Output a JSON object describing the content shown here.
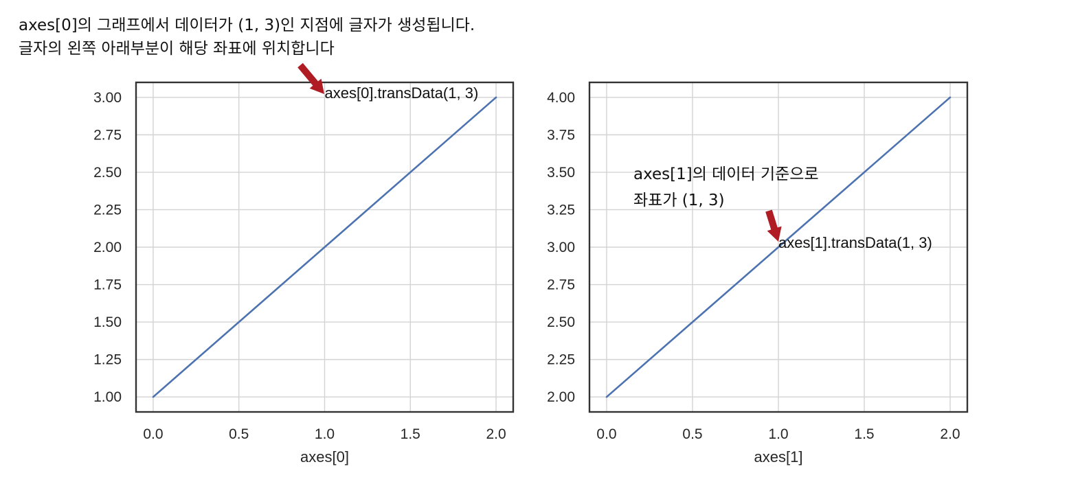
{
  "chart_data": [
    {
      "type": "line",
      "xlabel": "axes[0]",
      "ylabel": "",
      "x": [
        0.0,
        2.0
      ],
      "series": [
        {
          "values": [
            1.0,
            3.0
          ]
        }
      ],
      "xlim": [
        -0.1,
        2.1
      ],
      "ylim": [
        0.9,
        3.1
      ],
      "xticks": [
        "0.0",
        "0.5",
        "1.0",
        "1.5",
        "2.0"
      ],
      "yticks": [
        "1.00",
        "1.25",
        "1.50",
        "1.75",
        "2.00",
        "2.25",
        "2.50",
        "2.75",
        "3.00"
      ],
      "grid": true,
      "line_color": "#4c72b0",
      "annotation": {
        "text": "axes[0].transData(1, 3)",
        "x": 1,
        "y": 3
      }
    },
    {
      "type": "line",
      "xlabel": "axes[1]",
      "ylabel": "",
      "x": [
        0.0,
        2.0
      ],
      "series": [
        {
          "values": [
            2.0,
            4.0
          ]
        }
      ],
      "xlim": [
        -0.1,
        2.1
      ],
      "ylim": [
        1.9,
        4.1
      ],
      "xticks": [
        "0.0",
        "0.5",
        "1.0",
        "1.5",
        "2.0"
      ],
      "yticks": [
        "2.00",
        "2.25",
        "2.50",
        "2.75",
        "3.00",
        "3.25",
        "3.50",
        "3.75",
        "4.00"
      ],
      "grid": true,
      "line_color": "#4c72b0",
      "annotation": {
        "text": "axes[1].transData(1, 3)",
        "x": 1,
        "y": 3
      }
    }
  ],
  "callouts": {
    "top_line1": "axes[0]의 그래프에서 데이터가 (1, 3)인 지점에 글자가 생성됩니다.",
    "top_line2": "글자의 왼쪽 아래부분이 해당 좌표에 위치합니다",
    "right_line1": "axes[1]의 데이터 기준으로",
    "right_line2": "좌표가 (1, 3)",
    "arrow_color": "#b01c24"
  }
}
